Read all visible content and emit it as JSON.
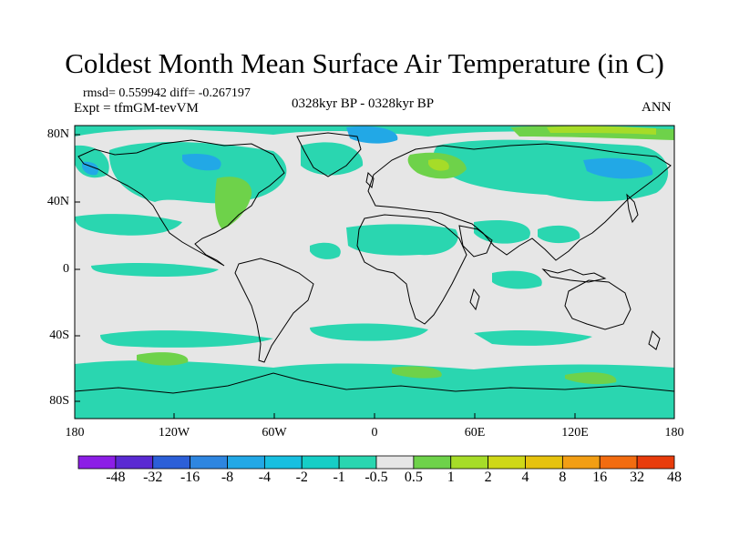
{
  "title": "Coldest Month Mean Surface Air Temperature (in C)",
  "stats": "rmsd= 0.559942 diff= -0.267197",
  "experiment": "Expt = tfmGM-tevVM",
  "period": "0328kyr BP - 0328kyr BP",
  "season": "ANN",
  "lat_labels": [
    "80N",
    "40N",
    "0",
    "40S",
    "80S"
  ],
  "lon_labels": [
    "180",
    "120W",
    "60W",
    "0",
    "60E",
    "120E",
    "180"
  ],
  "colorbar": {
    "labels": [
      "-48",
      "-32",
      "-16",
      "-8",
      "-4",
      "-2",
      "-1",
      "-0.5",
      "0.5",
      "1",
      "2",
      "4",
      "8",
      "16",
      "32",
      "48"
    ],
    "colors": [
      "#8c1ee6",
      "#5a2ad2",
      "#2c5fd8",
      "#2e86e0",
      "#22a8e6",
      "#18bfe0",
      "#16cec6",
      "#2ad6b0",
      "#e6e6e6",
      "#6ed24a",
      "#a6dc28",
      "#cfd818",
      "#e6c20e",
      "#f29e14",
      "#f26c10",
      "#e83c0c"
    ]
  },
  "colors": {
    "neutral": "#e6e6e6",
    "cool_light": "#2ad6b0",
    "cool_mid": "#16cec6",
    "cool_blue": "#22a8e6",
    "warm_green": "#6ed24a",
    "warm_yellow": "#a6dc28",
    "coast": "#000000"
  }
}
